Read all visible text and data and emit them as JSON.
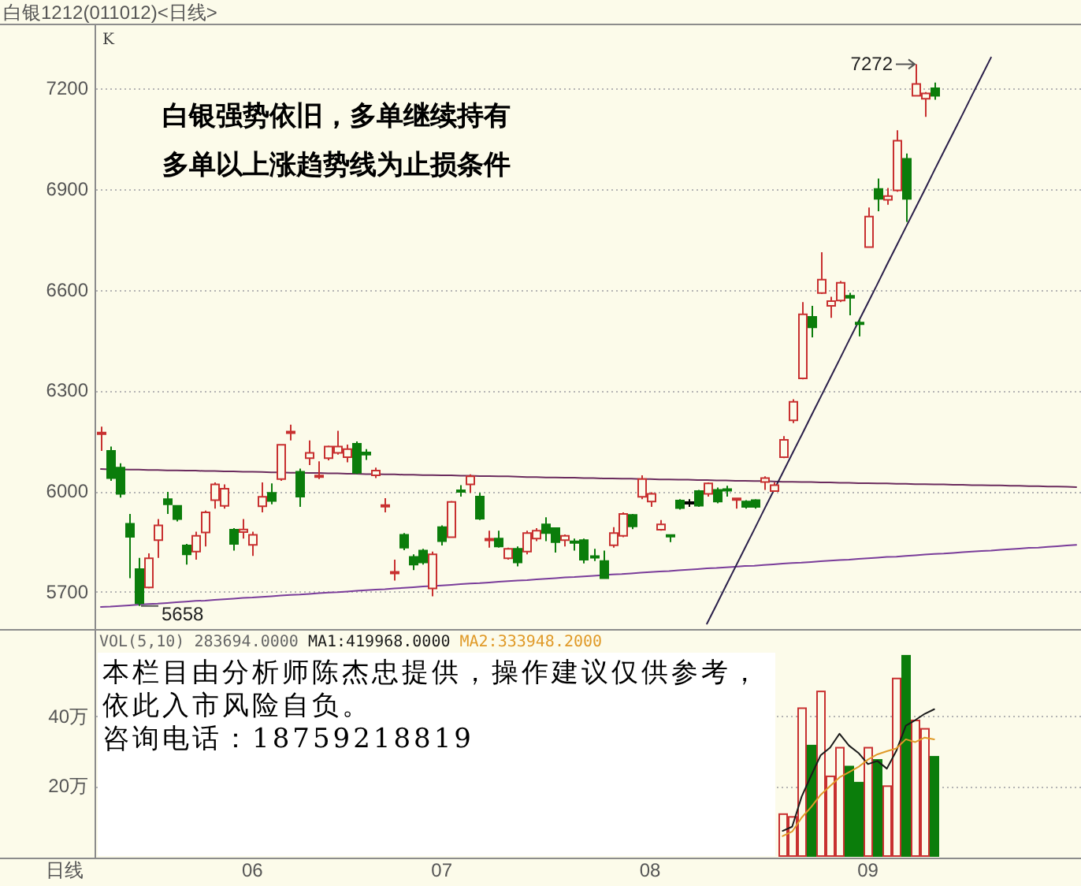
{
  "chart_data": [
    {
      "type": "candlestick",
      "title": "白银1212(011012)<日线>",
      "subtitle": "K",
      "categories": [
        null,
        null,
        null,
        null,
        null,
        null,
        null,
        null,
        null,
        null,
        null,
        null,
        null,
        null,
        null,
        null,
        "06",
        null,
        null,
        null,
        null,
        null,
        null,
        null,
        null,
        null,
        null,
        null,
        null,
        null,
        null,
        null,
        null,
        null,
        null,
        null,
        "07",
        null,
        null,
        null,
        null,
        null,
        null,
        null,
        null,
        null,
        null,
        null,
        null,
        null,
        null,
        null,
        null,
        null,
        null,
        null,
        null,
        null,
        "08",
        null,
        null,
        null,
        null,
        null,
        null,
        null,
        null,
        null,
        null,
        null,
        null,
        null,
        null,
        null,
        null,
        null,
        null,
        null,
        null,
        null,
        null,
        "09",
        null,
        null,
        null,
        null,
        null,
        null,
        null,
        null,
        null,
        null,
        null,
        null,
        null,
        null,
        null,
        null,
        null,
        null,
        null,
        null,
        null,
        null
      ],
      "ohlc": [
        [
          6172,
          6192,
          6120,
          6172
        ],
        [
          6120,
          6133,
          6031,
          6039
        ],
        [
          6070,
          6083,
          5981,
          5992
        ],
        [
          5903,
          5932,
          5741,
          5864
        ],
        [
          5768,
          5801,
          5658,
          5666
        ],
        [
          5713,
          5815,
          5710,
          5800
        ],
        [
          5854,
          5917,
          5801,
          5898
        ],
        [
          5976,
          5998,
          5932,
          5961
        ],
        [
          5956,
          5956,
          5910,
          5917
        ],
        [
          5838,
          5843,
          5781,
          5812
        ],
        [
          5820,
          5879,
          5796,
          5867
        ],
        [
          5877,
          5942,
          5835,
          5937
        ],
        [
          5973,
          6026,
          5948,
          6020
        ],
        [
          5956,
          6020,
          5948,
          6007
        ],
        [
          5885,
          5890,
          5823,
          5843
        ],
        [
          5878,
          5917,
          5859,
          5886
        ],
        [
          5840,
          5879,
          5807,
          5870
        ],
        [
          5955,
          6026,
          5937,
          5983
        ],
        [
          5995,
          6023,
          5961,
          5971
        ],
        [
          6036,
          6138,
          6031,
          6138
        ],
        [
          6175,
          6198,
          6151,
          6175
        ],
        [
          6058,
          6067,
          5953,
          5984
        ],
        [
          6098,
          6151,
          6078,
          6114
        ],
        [
          6044,
          6089,
          6036,
          6044
        ],
        [
          6098,
          6136,
          6092,
          6133
        ],
        [
          6114,
          6180,
          6109,
          6133
        ],
        [
          6101,
          6139,
          6086,
          6125
        ],
        [
          6141,
          6148,
          6051,
          6055
        ],
        [
          6115,
          6125,
          6093,
          6109
        ],
        [
          6047,
          6070,
          6039,
          6061
        ],
        [
          5956,
          5979,
          5937,
          5956
        ],
        [
          5757,
          5796,
          5734,
          5757
        ],
        [
          5870,
          5875,
          5824,
          5832
        ],
        [
          5804,
          5812,
          5765,
          5781
        ],
        [
          5823,
          5828,
          5781,
          5788
        ],
        [
          5710,
          5820,
          5687,
          5812
        ],
        [
          5893,
          5898,
          5838,
          5851
        ],
        [
          5863,
          5971,
          5863,
          5968
        ],
        [
          6002,
          6018,
          5984,
          5998
        ],
        [
          6020,
          6050,
          5995,
          6044
        ],
        [
          5984,
          5995,
          5914,
          5918
        ],
        [
          5856,
          5882,
          5832,
          5856
        ],
        [
          5859,
          5882,
          5832,
          5835
        ],
        [
          5800,
          5832,
          5796,
          5828
        ],
        [
          5828,
          5835,
          5776,
          5788
        ],
        [
          5820,
          5882,
          5812,
          5875
        ],
        [
          5859,
          5890,
          5851,
          5882
        ],
        [
          5901,
          5922,
          5851,
          5875
        ],
        [
          5890,
          5890,
          5817,
          5848
        ],
        [
          5854,
          5871,
          5835,
          5867
        ],
        [
          5850,
          5859,
          5823,
          5846
        ],
        [
          5854,
          5859,
          5785,
          5796
        ],
        [
          5806,
          5828,
          5792,
          5802
        ],
        [
          5792,
          5823,
          5741,
          5741
        ],
        [
          5839,
          5893,
          5832,
          5875
        ],
        [
          5867,
          5937,
          5863,
          5932
        ],
        [
          5929,
          5932,
          5887,
          5895
        ],
        [
          5983,
          6047,
          5976,
          6036
        ],
        [
          5969,
          5997,
          5953,
          5992
        ],
        [
          5885,
          5914,
          5882,
          5901
        ],
        [
          5869,
          5871,
          5848,
          5865
        ],
        [
          5972,
          5976,
          5945,
          5950
        ],
        [
          5965,
          5976,
          5953,
          5965
        ],
        [
          6000,
          6004,
          5953,
          5957
        ],
        [
          5992,
          6026,
          5984,
          6023
        ],
        [
          6004,
          6011,
          5964,
          5969
        ],
        [
          6006,
          6016,
          5984,
          6002
        ],
        [
          5976,
          5981,
          5948,
          5976
        ],
        [
          5969,
          5973,
          5948,
          5953
        ],
        [
          5973,
          5976,
          5948,
          5953
        ],
        [
          6027,
          6044,
          6004,
          6039
        ],
        [
          6000,
          6026,
          6000,
          6018
        ],
        [
          6101,
          6164,
          6098,
          6153
        ],
        [
          6211,
          6274,
          6203,
          6266
        ],
        [
          6336,
          6563,
          6333,
          6527
        ],
        [
          6519,
          6552,
          6458,
          6488
        ],
        [
          6590,
          6712,
          6587,
          6630
        ],
        [
          6552,
          6579,
          6516,
          6566
        ],
        [
          6568,
          6626,
          6563,
          6621
        ],
        [
          6582,
          6591,
          6524,
          6576
        ],
        [
          6502,
          6511,
          6461,
          6498
        ],
        [
          6727,
          6845,
          6727,
          6818
        ],
        [
          6900,
          6931,
          6834,
          6871
        ],
        [
          6868,
          6903,
          6853,
          6879
        ],
        [
          6896,
          7075,
          6892,
          7044
        ],
        [
          6990,
          7006,
          6802,
          6871
        ],
        [
          7178,
          7272,
          7178,
          7213
        ],
        [
          7169,
          7189,
          7115,
          7185
        ],
        [
          7200,
          7217,
          7166,
          7178
        ],
        null,
        null,
        null,
        null,
        null,
        null,
        null,
        null,
        null,
        null,
        null,
        null,
        null,
        null,
        null
      ],
      "colors": [
        "#c83030",
        "#0b7d0b",
        "#0b7d0b",
        "#0b7d0b",
        "#0b7d0b",
        "#c83030",
        "#c83030",
        "#0b7d0b",
        "#0b7d0b",
        "#0b7d0b",
        "#c83030",
        "#c83030",
        "#c83030",
        "#c83030",
        "#0b7d0b",
        "#c83030",
        "#c83030",
        "#c83030",
        "#0b7d0b",
        "#c83030",
        "#c83030",
        "#0b7d0b",
        "#c83030",
        "#c83030",
        "#c83030",
        "#c83030",
        "#c83030",
        "#0b7d0b",
        "#0b7d0b",
        "#c83030",
        "#c83030",
        "#c83030",
        "#0b7d0b",
        "#0b7d0b",
        "#0b7d0b",
        "#c83030",
        "#0b7d0b",
        "#c83030",
        "#0b7d0b",
        "#c83030",
        "#0b7d0b",
        "#c83030",
        "#0b7d0b",
        "#c83030",
        "#0b7d0b",
        "#c83030",
        "#c83030",
        "#0b7d0b",
        "#0b7d0b",
        "#c83030",
        "#0b7d0b",
        "#0b7d0b",
        "#0b7d0b",
        "#0b7d0b",
        "#c83030",
        "#c83030",
        "#0b7d0b",
        "#c83030",
        "#c83030",
        "#c83030",
        "#0b7d0b",
        "#0b7d0b",
        "#000000",
        "#0b7d0b",
        "#c83030",
        "#0b7d0b",
        "#0b7d0b",
        "#c83030",
        "#0b7d0b",
        "#0b7d0b",
        "#c83030",
        "#c83030",
        "#c83030",
        "#c83030",
        "#c83030",
        "#0b7d0b",
        "#c83030",
        "#c83030",
        "#c83030",
        "#0b7d0b",
        "#0b7d0b",
        "#c83030",
        "#0b7d0b",
        "#c83030",
        "#c83030",
        "#0b7d0b",
        "#c83030",
        "#c83030",
        "#0b7d0b",
        null,
        null,
        null,
        null,
        null,
        null,
        null,
        null,
        null,
        null,
        null,
        null,
        null,
        null,
        null
      ],
      "series": [
        {
          "type": "line",
          "color": "#6b2c5e",
          "values": [
            6066,
            6065,
            6065,
            6064,
            6064,
            6063,
            6063,
            6062,
            6062,
            6061,
            6061,
            6060,
            6060,
            6059,
            6059,
            6058,
            6058,
            6057,
            6056,
            6056,
            6055,
            6055,
            6054,
            6054,
            6053,
            6053,
            6052,
            6052,
            6051,
            6051,
            6050,
            6050,
            6049,
            6049,
            6048,
            6048,
            6047,
            6047,
            6046,
            6046,
            6045,
            6045,
            6044,
            6044,
            6043,
            6042,
            6042,
            6041,
            6041,
            6040,
            6040,
            6039,
            6039,
            6038,
            6038,
            6037,
            6037,
            6036,
            6036,
            6035,
            6035,
            6034,
            6034,
            6033,
            6033,
            6032,
            6032,
            6031,
            6031,
            6030,
            6030,
            6029,
            6028,
            6028,
            6027,
            6027,
            6026,
            6026,
            6025,
            6025,
            6024,
            6024,
            6023,
            6023,
            6022,
            6022,
            6021,
            6021,
            6020,
            6020,
            6019,
            6019,
            6018,
            6018,
            6017,
            6017,
            6016,
            6016,
            6015,
            6015,
            6014,
            6014,
            6013,
            6012
          ]
        },
        {
          "type": "line",
          "color": "#7a3d9a",
          "values": [
            5655,
            5656,
            5658,
            5660,
            5662,
            5664,
            5665,
            5667,
            5669,
            5671,
            5673,
            5674,
            5676,
            5678,
            5680,
            5682,
            5683,
            5685,
            5687,
            5689,
            5691,
            5692,
            5694,
            5696,
            5698,
            5699,
            5701,
            5703,
            5705,
            5707,
            5708,
            5710,
            5712,
            5714,
            5716,
            5717,
            5719,
            5721,
            5723,
            5725,
            5726,
            5728,
            5730,
            5732,
            5734,
            5735,
            5737,
            5739,
            5741,
            5743,
            5744,
            5746,
            5748,
            5750,
            5752,
            5753,
            5755,
            5757,
            5759,
            5761,
            5762,
            5764,
            5766,
            5768,
            5770,
            5771,
            5773,
            5775,
            5777,
            5778,
            5780,
            5782,
            5784,
            5786,
            5787,
            5789,
            5791,
            5793,
            5795,
            5796,
            5798,
            5800,
            5802,
            5804,
            5805,
            5807,
            5809,
            5811,
            5813,
            5814,
            5816,
            5818,
            5820,
            5822,
            5823,
            5825,
            5827,
            5829,
            5831,
            5832,
            5834,
            5836,
            5838,
            5840
          ]
        },
        {
          "type": "line",
          "color": "#2a1f4a",
          "values": [
            null,
            null,
            null,
            null,
            null,
            null,
            null,
            null,
            null,
            null,
            null,
            null,
            null,
            null,
            null,
            null,
            null,
            null,
            null,
            null,
            null,
            null,
            null,
            null,
            null,
            null,
            null,
            null,
            null,
            null,
            null,
            null,
            null,
            null,
            null,
            null,
            null,
            null,
            null,
            null,
            null,
            null,
            null,
            null,
            null,
            null,
            null,
            null,
            null,
            null,
            null,
            null,
            null,
            null,
            null,
            null,
            null,
            null,
            null,
            null,
            null,
            null,
            null,
            null,
            5605,
            5661,
            5718,
            5774,
            5830,
            5886,
            5943,
            5999,
            6055,
            6111,
            6167,
            6224,
            6280,
            6336,
            6392,
            6449,
            6505,
            6561,
            6617,
            6674,
            6730,
            6786,
            6842,
            6898,
            6955,
            7011,
            7067,
            7123,
            7180,
            7236,
            7292,
            null,
            null,
            null,
            null,
            null,
            null,
            null,
            null,
            null
          ]
        }
      ],
      "ylim": [
        5594,
        7388
      ],
      "yticks": [
        5700,
        6000,
        6300,
        6600,
        6900,
        7200
      ],
      "grid": "y",
      "tick_labels": "y",
      "annotations": [
        "白银强势依旧，多单继续持有",
        "多单以上涨趋势线为止损条件",
        "7272",
        "5658"
      ]
    },
    {
      "type": "bar",
      "title": "VOL(5,10) 283694.0000",
      "xlabel": "日线",
      "categories": [
        null,
        null,
        null,
        null,
        null,
        null,
        null,
        null,
        null,
        null,
        null,
        null,
        null,
        null,
        null,
        null,
        "06",
        null,
        null,
        null,
        null,
        null,
        null,
        null,
        null,
        null,
        null,
        null,
        null,
        null,
        null,
        null,
        null,
        null,
        null,
        null,
        "07",
        null,
        null,
        null,
        null,
        null,
        null,
        null,
        null,
        null,
        null,
        null,
        null,
        null,
        null,
        null,
        null,
        null,
        null,
        null,
        null,
        null,
        "08",
        null,
        null,
        null,
        null,
        null,
        null,
        null,
        null,
        null,
        null,
        null,
        null,
        null,
        null,
        null,
        null,
        null,
        null,
        null,
        null,
        null,
        null,
        "09",
        null,
        null,
        null,
        null,
        null,
        null,
        null,
        null,
        null,
        null,
        null,
        null,
        null,
        null,
        null,
        null,
        null,
        null,
        null,
        null,
        null,
        null
      ],
      "series": [
        {
          "colors": [
            null,
            null,
            null,
            null,
            null,
            null,
            null,
            null,
            null,
            null,
            null,
            null,
            null,
            null,
            null,
            null,
            null,
            null,
            null,
            null,
            null,
            null,
            null,
            null,
            null,
            null,
            null,
            null,
            null,
            null,
            null,
            null,
            null,
            null,
            null,
            null,
            null,
            null,
            null,
            null,
            null,
            null,
            null,
            null,
            null,
            null,
            null,
            null,
            null,
            null,
            null,
            null,
            null,
            null,
            null,
            null,
            null,
            null,
            null,
            null,
            null,
            null,
            null,
            null,
            null,
            null,
            null,
            null,
            null,
            null,
            null,
            null,
            "#c83030",
            "#c83030",
            "#c83030",
            "#0b7d0b",
            "#c83030",
            "#c83030",
            "#c83030",
            "#0b7d0b",
            "#0b7d0b",
            "#c83030",
            "#0b7d0b",
            "#c83030",
            "#c83030",
            "#0b7d0b",
            "#c83030",
            "#c83030",
            "#0b7d0b",
            null,
            null,
            null,
            null,
            null,
            null,
            null,
            null,
            null,
            null,
            null,
            null,
            null,
            null,
            null
          ],
          "values": [
            null,
            null,
            null,
            null,
            null,
            null,
            null,
            null,
            null,
            null,
            null,
            null,
            null,
            null,
            null,
            null,
            null,
            null,
            null,
            null,
            null,
            null,
            null,
            null,
            null,
            null,
            null,
            null,
            null,
            null,
            null,
            null,
            null,
            null,
            null,
            null,
            null,
            null,
            null,
            null,
            null,
            null,
            null,
            null,
            null,
            null,
            null,
            null,
            null,
            null,
            null,
            null,
            null,
            null,
            null,
            null,
            null,
            null,
            null,
            null,
            null,
            null,
            null,
            null,
            null,
            null,
            null,
            null,
            null,
            null,
            null,
            null,
            12,
            11.2,
            42.3,
            31.6,
            47.1,
            22.8,
            31,
            25.6,
            21,
            31,
            27.5,
            20,
            50.8,
            57.3,
            38.8,
            36.4,
            28.4,
            null,
            null,
            null,
            null,
            null,
            null,
            null,
            null,
            null,
            null,
            null,
            null,
            null,
            null,
            null
          ]
        },
        {
          "type": "line",
          "name": "MA1:419968.0000",
          "color": "#1a1a1a",
          "values": [
            null,
            null,
            null,
            null,
            null,
            null,
            null,
            null,
            null,
            null,
            null,
            null,
            null,
            null,
            null,
            null,
            null,
            null,
            null,
            null,
            null,
            null,
            null,
            null,
            null,
            null,
            null,
            null,
            null,
            null,
            null,
            null,
            null,
            null,
            null,
            null,
            null,
            null,
            null,
            null,
            null,
            null,
            null,
            null,
            null,
            null,
            null,
            null,
            null,
            null,
            null,
            null,
            null,
            null,
            null,
            null,
            null,
            null,
            null,
            null,
            null,
            null,
            null,
            null,
            null,
            null,
            null,
            null,
            null,
            null,
            null,
            null,
            7.2,
            8.4,
            17,
            23,
            28.8,
            31,
            35,
            31.6,
            29.5,
            26.3,
            27.2,
            25,
            30.1,
            37.3,
            38.9,
            40.7,
            42,
            null,
            null,
            null,
            null,
            null,
            null,
            null,
            null,
            null,
            null,
            null,
            null,
            null,
            null,
            null
          ]
        },
        {
          "type": "line",
          "name": "MA2:333948.2000",
          "color": "#e09a28",
          "values": [
            null,
            null,
            null,
            null,
            null,
            null,
            null,
            null,
            null,
            null,
            null,
            null,
            null,
            null,
            null,
            null,
            null,
            null,
            null,
            null,
            null,
            null,
            null,
            null,
            null,
            null,
            null,
            null,
            null,
            null,
            null,
            null,
            null,
            null,
            null,
            null,
            null,
            null,
            null,
            null,
            null,
            null,
            null,
            null,
            null,
            null,
            null,
            null,
            null,
            null,
            null,
            null,
            null,
            null,
            null,
            null,
            null,
            null,
            null,
            null,
            null,
            null,
            null,
            null,
            null,
            null,
            null,
            null,
            null,
            null,
            null,
            null,
            5.7,
            7,
            11,
            14,
            17.5,
            20,
            22.5,
            24,
            25.5,
            27.6,
            29.1,
            30,
            30.8,
            33.4,
            32.6,
            33.9,
            33.4,
            null,
            null,
            null,
            null,
            null,
            null,
            null,
            null,
            null,
            null,
            null,
            null,
            null,
            null,
            null
          ]
        }
      ],
      "ylim": [
        0,
        64.5
      ],
      "yticks": [
        {
          "value": 20,
          "label": "20万"
        },
        {
          "value": 40,
          "label": "40万"
        }
      ],
      "grid": "y",
      "legend": "top left",
      "annotations": [
        "本栏目由分析师陈杰忠提供，操作建议仅供参考，依此入市风险自负。",
        "咨询电话：18759218819"
      ]
    }
  ]
}
